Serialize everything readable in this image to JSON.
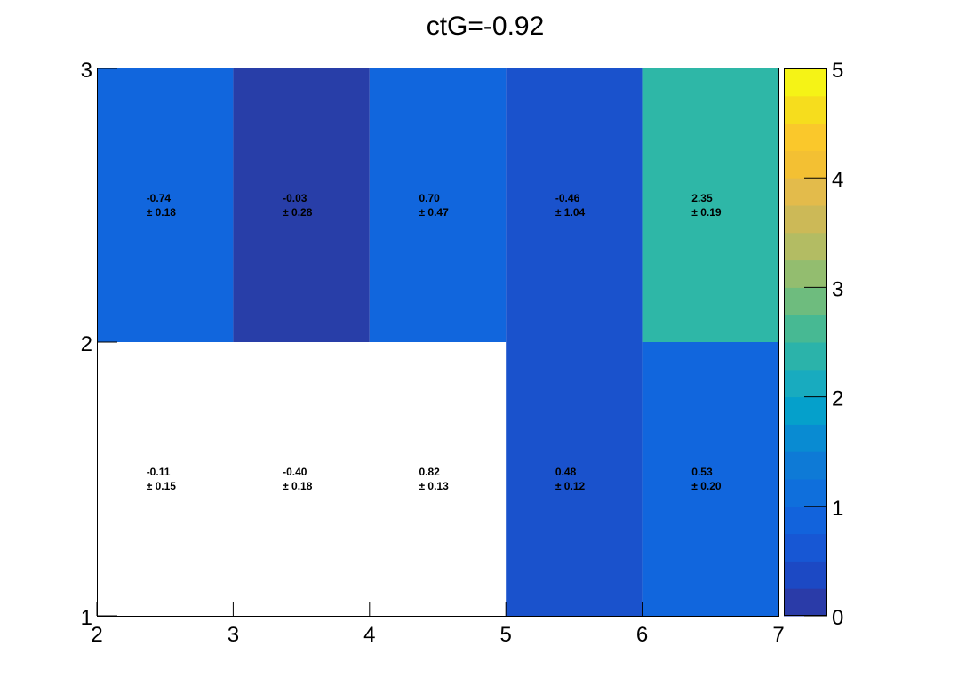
{
  "chart_data": {
    "type": "heatmap",
    "title": "ctG=-0.92",
    "xlabel": "",
    "ylabel": "",
    "xlim": [
      2,
      7
    ],
    "ylim": [
      1,
      3
    ],
    "x_ticks": [
      "2",
      "3",
      "4",
      "5",
      "6",
      "7"
    ],
    "y_ticks": [
      "1",
      "2",
      "3"
    ],
    "colorbar": {
      "min": 0,
      "max": 5,
      "ticks": [
        "0",
        "1",
        "2",
        "3",
        "4",
        "5"
      ],
      "palette": "kBird"
    },
    "cells": [
      {
        "x": [
          2,
          3
        ],
        "y": [
          2,
          3
        ],
        "value": -0.74,
        "error": 0.18,
        "text": "-0.74",
        "err_text": "± 0.18",
        "color": "#1166dd"
      },
      {
        "x": [
          3,
          4
        ],
        "y": [
          2,
          3
        ],
        "value": -0.03,
        "error": 0.28,
        "text": "-0.03",
        "err_text": "± 0.28",
        "color": "#283ea8"
      },
      {
        "x": [
          4,
          5
        ],
        "y": [
          2,
          3
        ],
        "value": 0.7,
        "error": 0.47,
        "text": "0.70",
        "err_text": "± 0.47",
        "color": "#1166dd"
      },
      {
        "x": [
          5,
          6
        ],
        "y": [
          2,
          3
        ],
        "value": -0.46,
        "error": 1.04,
        "text": "-0.46",
        "err_text": "± 1.04",
        "color": "#1a52cc"
      },
      {
        "x": [
          6,
          7
        ],
        "y": [
          2,
          3
        ],
        "value": 2.35,
        "error": 0.19,
        "text": "2.35",
        "err_text": "± 0.19",
        "color": "#2eb7a7"
      },
      {
        "x": [
          2,
          3
        ],
        "y": [
          1,
          2
        ],
        "value": -0.11,
        "error": 0.15,
        "text": "-0.11",
        "err_text": "± 0.15",
        "color": "#ffffff"
      },
      {
        "x": [
          3,
          4
        ],
        "y": [
          1,
          2
        ],
        "value": -0.4,
        "error": 0.18,
        "text": "-0.40",
        "err_text": "± 0.18",
        "color": "#ffffff"
      },
      {
        "x": [
          4,
          5
        ],
        "y": [
          1,
          2
        ],
        "value": 0.82,
        "error": 0.13,
        "text": "0.82",
        "err_text": "± 0.13",
        "color": "#ffffff"
      },
      {
        "x": [
          5,
          6
        ],
        "y": [
          1,
          2
        ],
        "value": 0.48,
        "error": 0.12,
        "text": "0.48",
        "err_text": "± 0.12",
        "color": "#1a52cc"
      },
      {
        "x": [
          6,
          7
        ],
        "y": [
          1,
          2
        ],
        "value": 0.53,
        "error": 0.2,
        "text": "0.53",
        "err_text": "± 0.20",
        "color": "#1166dd"
      }
    ],
    "colorbar_colors": [
      "#2a3ba8",
      "#1c49c4",
      "#1757d4",
      "#1263dc",
      "#0f6fdc",
      "#0e7ad6",
      "#098bd2",
      "#05a0cb",
      "#18abbf",
      "#2bb3aa",
      "#47b993",
      "#6ebc7e",
      "#93bd6f",
      "#b3bc63",
      "#ccb957",
      "#e3bb4b",
      "#f3c033",
      "#fac82b",
      "#f6dd1d",
      "#f5f316"
    ]
  }
}
